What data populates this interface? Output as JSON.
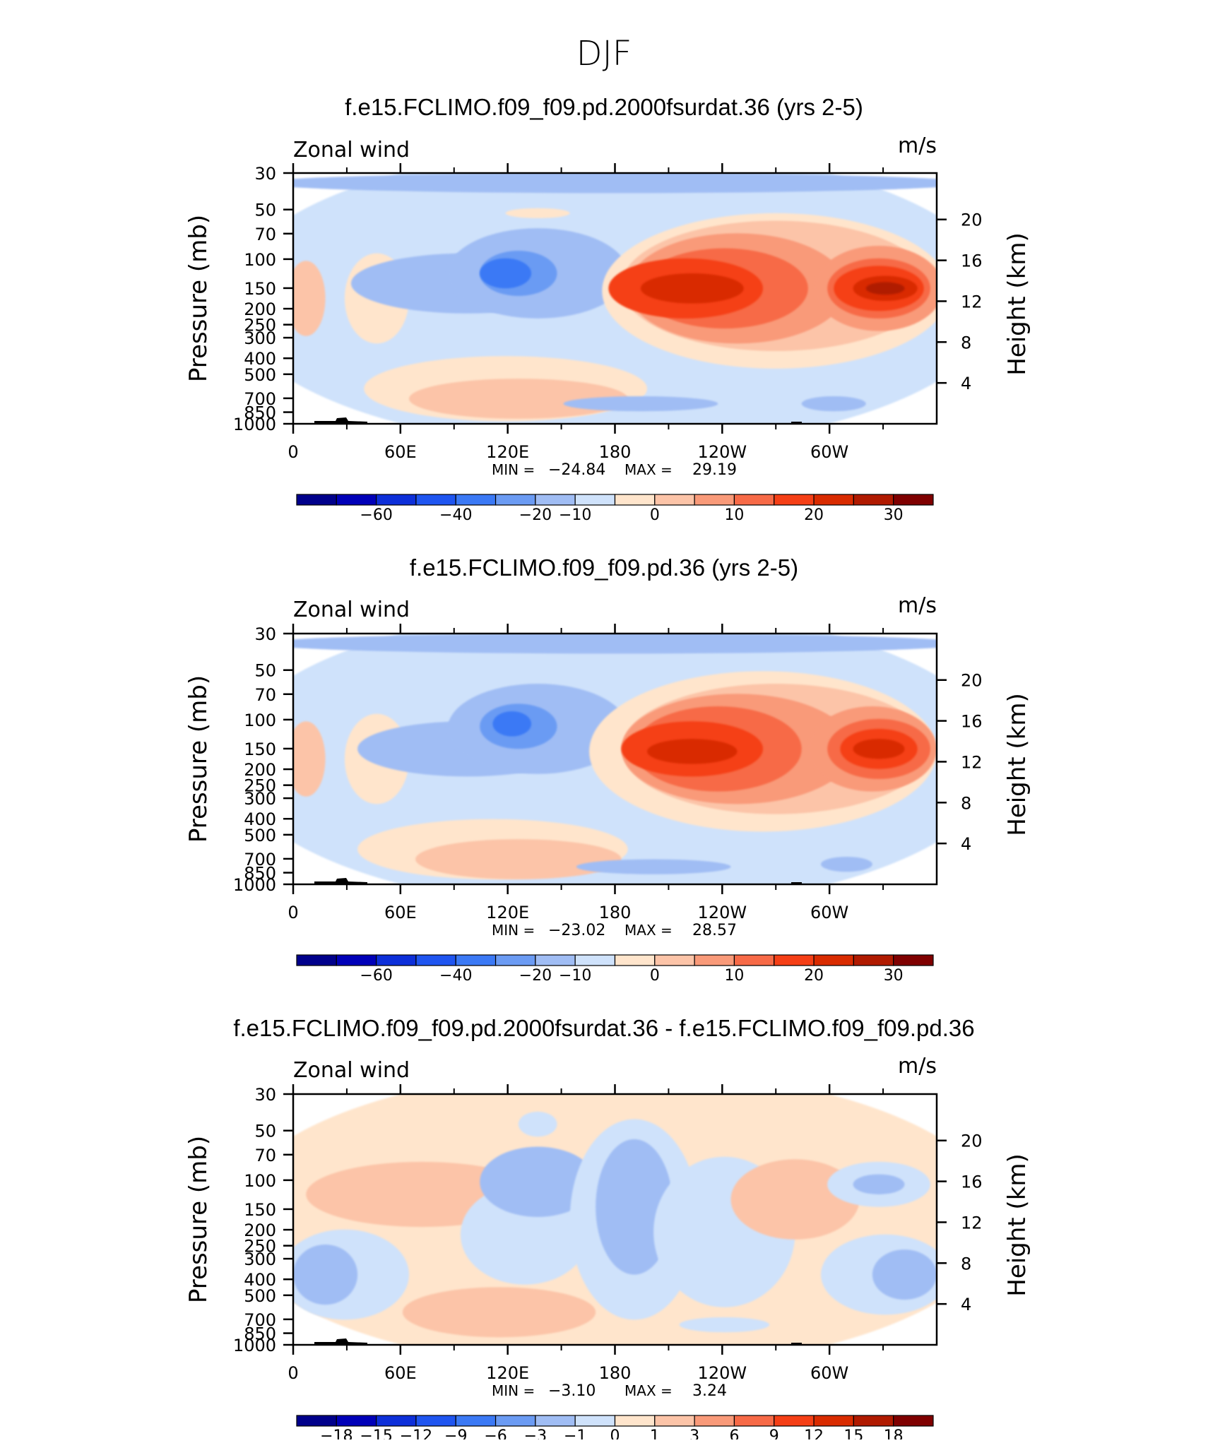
{
  "page_title": "DJF",
  "chart_data": [
    {
      "type": "contour",
      "title": "f.e15.FCLIMO.f09_f09.pd.2000fsurdat.36 (yrs 2-5)",
      "field_label": "Zonal wind",
      "units": "m/s",
      "ylabel": "Pressure (mb)",
      "y2label": "Height (km)",
      "x_ticks": [
        "0",
        "60E",
        "120E",
        "180",
        "120W",
        "60W"
      ],
      "x_tick_values": [
        0,
        60,
        120,
        180,
        240,
        300
      ],
      "xlim": [
        0,
        360
      ],
      "pressure_ticks": [
        30,
        50,
        70,
        100,
        150,
        200,
        250,
        300,
        400,
        500,
        700,
        850,
        1000
      ],
      "height_ticks": [
        4,
        8,
        12,
        16,
        20
      ],
      "min_label": "MIN =",
      "min_value": "−24.84",
      "max_label": "MAX =",
      "max_value": "29.19",
      "colorbar_labels": [
        "−60",
        "−40",
        "−20",
        "−10",
        "0",
        "10",
        "20",
        "30"
      ],
      "features": [
        {
          "kind": "jet",
          "center_lon": 120,
          "center_p": 120,
          "peak": -24.84
        },
        {
          "kind": "jet",
          "center_lon": 215,
          "center_p": 150,
          "peak": 25
        },
        {
          "kind": "jet",
          "center_lon": 330,
          "center_p": 145,
          "peak": 29.19
        }
      ]
    },
    {
      "type": "contour",
      "title": "f.e15.FCLIMO.f09_f09.pd.36 (yrs 2-5)",
      "field_label": "Zonal wind",
      "units": "m/s",
      "ylabel": "Pressure (mb)",
      "y2label": "Height (km)",
      "x_ticks": [
        "0",
        "60E",
        "120E",
        "180",
        "120W",
        "60W"
      ],
      "x_tick_values": [
        0,
        60,
        120,
        180,
        240,
        300
      ],
      "xlim": [
        0,
        360
      ],
      "pressure_ticks": [
        30,
        50,
        70,
        100,
        150,
        200,
        250,
        300,
        400,
        500,
        700,
        850,
        1000
      ],
      "height_ticks": [
        4,
        8,
        12,
        16,
        20
      ],
      "min_label": "MIN =",
      "min_value": "−23.02",
      "max_label": "MAX =",
      "max_value": "28.57",
      "colorbar_labels": [
        "−60",
        "−40",
        "−20",
        "−10",
        "0",
        "10",
        "20",
        "30"
      ],
      "features": [
        {
          "kind": "jet",
          "center_lon": 120,
          "center_p": 115,
          "peak": -23.02
        },
        {
          "kind": "jet",
          "center_lon": 215,
          "center_p": 150,
          "peak": 26
        },
        {
          "kind": "jet",
          "center_lon": 330,
          "center_p": 150,
          "peak": 28.57
        }
      ]
    },
    {
      "type": "contour",
      "title": "f.e15.FCLIMO.f09_f09.pd.2000fsurdat.36 - f.e15.FCLIMO.f09_f09.pd.36",
      "field_label": "Zonal wind",
      "units": "m/s",
      "ylabel": "Pressure (mb)",
      "y2label": "Height (km)",
      "x_ticks": [
        "0",
        "60E",
        "120E",
        "180",
        "120W",
        "60W"
      ],
      "x_tick_values": [
        0,
        60,
        120,
        180,
        240,
        300
      ],
      "xlim": [
        0,
        360
      ],
      "pressure_ticks": [
        30,
        50,
        70,
        100,
        150,
        200,
        250,
        300,
        400,
        500,
        700,
        850,
        1000
      ],
      "height_ticks": [
        4,
        8,
        12,
        16,
        20
      ],
      "min_label": "MIN =",
      "min_value": "−3.10",
      "max_label": "MAX =",
      "max_value": "3.24",
      "colorbar_labels": [
        "−18",
        "−15",
        "−12",
        "−9",
        "−6",
        "−3",
        "−1",
        "0",
        "1",
        "3",
        "6",
        "9",
        "12",
        "15",
        "18"
      ],
      "features": [
        {
          "kind": "anomaly",
          "center_lon": 190,
          "center_p": 200,
          "peak": -3.1
        },
        {
          "kind": "anomaly",
          "center_lon": 140,
          "center_p": 600,
          "peak": 3.24
        }
      ]
    }
  ],
  "colors": {
    "colorbar": [
      "#00008b",
      "#0000b8",
      "#0d2fd9",
      "#1f55f0",
      "#3b79f5",
      "#6b9bf3",
      "#a0bdf4",
      "#cfe2fb",
      "#ffe5cc",
      "#fcc4a8",
      "#f99a79",
      "#f76a47",
      "#f53f16",
      "#d92b00",
      "#b01a00",
      "#7f0000"
    ],
    "topography": "#000000"
  }
}
